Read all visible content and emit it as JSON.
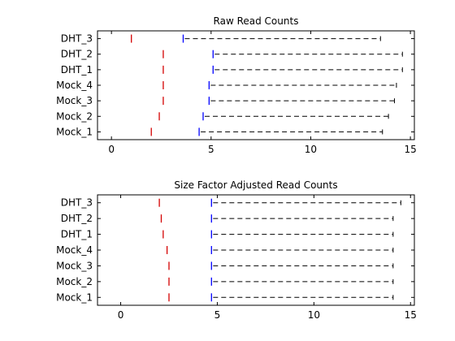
{
  "colors": {
    "min_marker": "#d40000",
    "box_marker": "#0000ff",
    "whisker": "#000000"
  },
  "chart_data": [
    {
      "type": "boxplot",
      "title": "Raw Read Counts",
      "xlabel": "",
      "ylabel": "",
      "xlim": [
        -0.7,
        15.2
      ],
      "xticks": [
        0,
        5,
        10,
        15
      ],
      "grid": false,
      "categories": [
        "DHT_3",
        "DHT_2",
        "DHT_1",
        "Mock_4",
        "Mock_3",
        "Mock_2",
        "Mock_1"
      ],
      "min": [
        1.0,
        2.6,
        2.6,
        2.6,
        2.6,
        2.4,
        2.0
      ],
      "q1": [
        3.6,
        5.1,
        5.1,
        4.9,
        4.9,
        4.6,
        4.4
      ],
      "max": [
        13.5,
        14.6,
        14.6,
        14.3,
        14.2,
        13.9,
        13.6
      ]
    },
    {
      "type": "boxplot",
      "title": "Size Factor Adjusted Read Counts",
      "xlabel": "",
      "ylabel": "",
      "xlim": [
        -1.2,
        15.2
      ],
      "xticks": [
        0,
        5,
        10,
        15
      ],
      "grid": false,
      "categories": [
        "DHT_3",
        "DHT_2",
        "DHT_1",
        "Mock_4",
        "Mock_3",
        "Mock_2",
        "Mock_1"
      ],
      "min": [
        2.0,
        2.1,
        2.2,
        2.4,
        2.5,
        2.5,
        2.5
      ],
      "q1": [
        4.7,
        4.7,
        4.7,
        4.7,
        4.7,
        4.7,
        4.7
      ],
      "max": [
        14.5,
        14.1,
        14.1,
        14.1,
        14.1,
        14.1,
        14.1
      ]
    }
  ]
}
